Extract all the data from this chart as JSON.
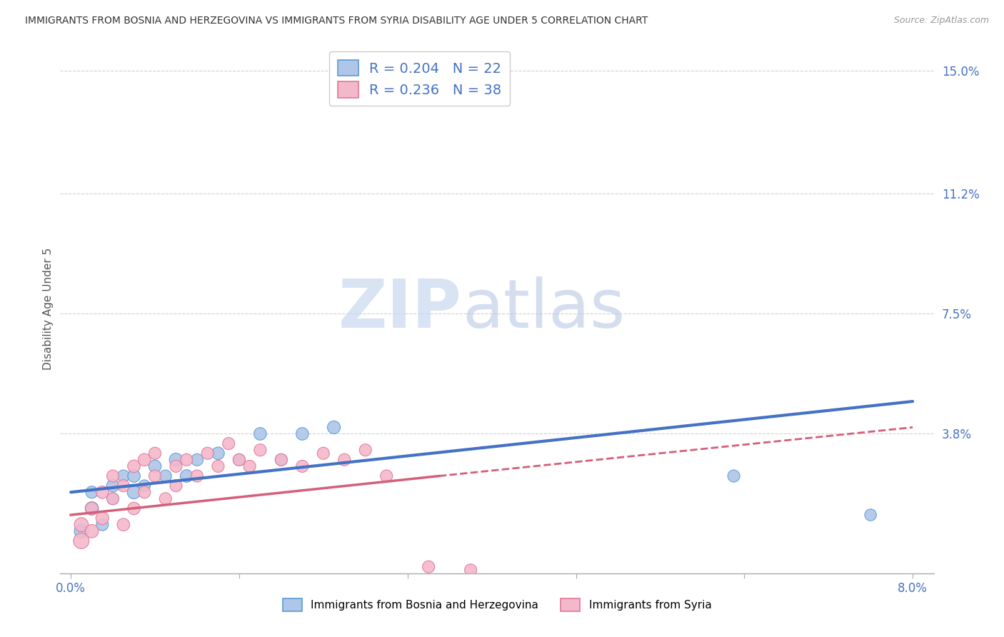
{
  "title": "IMMIGRANTS FROM BOSNIA AND HERZEGOVINA VS IMMIGRANTS FROM SYRIA DISABILITY AGE UNDER 5 CORRELATION CHART",
  "source": "Source: ZipAtlas.com",
  "ylabel": "Disability Age Under 5",
  "xlim": [
    -0.001,
    0.082
  ],
  "ylim": [
    -0.005,
    0.158
  ],
  "yticks": [
    0.038,
    0.075,
    0.112,
    0.15
  ],
  "ytick_labels": [
    "3.8%",
    "7.5%",
    "11.2%",
    "15.0%"
  ],
  "xticks": [
    0.0,
    0.016,
    0.032,
    0.048,
    0.064,
    0.08
  ],
  "xtick_labels": [
    "0.0%",
    "",
    "",
    "",
    "",
    "8.0%"
  ],
  "bosnia_color": "#aec6e8",
  "bosnia_edge_color": "#5b9bd5",
  "syria_color": "#f4b8cb",
  "syria_edge_color": "#e07898",
  "bosnia_trend_color": "#4472c4",
  "syria_trend_color": "#d45f7a",
  "bosnia_scatter_x": [
    0.001,
    0.002,
    0.002,
    0.003,
    0.004,
    0.004,
    0.005,
    0.006,
    0.006,
    0.007,
    0.008,
    0.009,
    0.01,
    0.011,
    0.012,
    0.014,
    0.016,
    0.018,
    0.02,
    0.022,
    0.025,
    0.063,
    0.076
  ],
  "bosnia_scatter_y": [
    0.008,
    0.015,
    0.02,
    0.01,
    0.022,
    0.018,
    0.025,
    0.02,
    0.025,
    0.022,
    0.028,
    0.025,
    0.03,
    0.025,
    0.03,
    0.032,
    0.03,
    0.038,
    0.03,
    0.038,
    0.04,
    0.025,
    0.013
  ],
  "bosnia_scatter_sizes": [
    200,
    180,
    150,
    150,
    160,
    140,
    150,
    180,
    160,
    140,
    160,
    150,
    180,
    160,
    150,
    160,
    150,
    160,
    150,
    160,
    170,
    150,
    140
  ],
  "syria_scatter_x": [
    0.001,
    0.001,
    0.002,
    0.002,
    0.003,
    0.003,
    0.004,
    0.004,
    0.005,
    0.005,
    0.006,
    0.006,
    0.007,
    0.007,
    0.008,
    0.008,
    0.009,
    0.01,
    0.01,
    0.011,
    0.012,
    0.013,
    0.014,
    0.015,
    0.016,
    0.017,
    0.018,
    0.02,
    0.022,
    0.024,
    0.026,
    0.028,
    0.03,
    0.034,
    0.038
  ],
  "syria_scatter_y": [
    0.005,
    0.01,
    0.008,
    0.015,
    0.012,
    0.02,
    0.018,
    0.025,
    0.01,
    0.022,
    0.015,
    0.028,
    0.02,
    0.03,
    0.025,
    0.032,
    0.018,
    0.028,
    0.022,
    0.03,
    0.025,
    0.032,
    0.028,
    0.035,
    0.03,
    0.028,
    0.033,
    0.03,
    0.028,
    0.032,
    0.03,
    0.033,
    0.025,
    -0.003,
    -0.004
  ],
  "syria_scatter_sizes": [
    250,
    200,
    180,
    160,
    170,
    160,
    150,
    150,
    160,
    150,
    160,
    160,
    150,
    160,
    150,
    150,
    150,
    150,
    150,
    150,
    150,
    150,
    150,
    150,
    150,
    150,
    150,
    150,
    150,
    150,
    150,
    150,
    150,
    150,
    150
  ],
  "bosnia_trend_x0": 0.0,
  "bosnia_trend_y0": 0.02,
  "bosnia_trend_x1": 0.08,
  "bosnia_trend_y1": 0.048,
  "syria_trend_x0": 0.0,
  "syria_trend_y0": 0.013,
  "syria_trend_x1_solid": 0.035,
  "syria_trend_y1_solid": 0.025,
  "syria_trend_x1_dashed": 0.08,
  "syria_trend_y1_dashed": 0.04,
  "watermark_zip": "ZIP",
  "watermark_atlas": "atlas",
  "background_color": "#ffffff",
  "grid_color": "#d0d0d0"
}
